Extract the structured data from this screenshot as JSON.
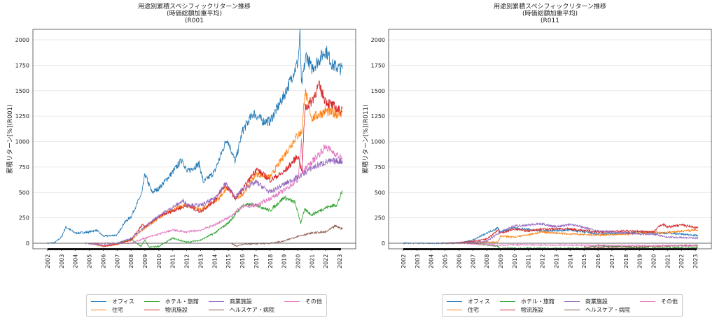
{
  "chart_data": [
    {
      "type": "line",
      "title": [
        "用途別累積スペシフィックリターン推移",
        "(時価総額加重平均)",
        "(R001"
      ],
      "xlabel": "",
      "ylabel": "累積リターン[%](R001)",
      "xlim": [
        2001.7,
        2023.9
      ],
      "ylim": [
        -50,
        2100
      ],
      "xticks": [
        "2002",
        "2003",
        "2004",
        "2005",
        "2006",
        "2007",
        "2008",
        "2009",
        "2010",
        "2011",
        "2012",
        "2013",
        "2014",
        "2015",
        "2016",
        "2017",
        "2018",
        "2019",
        "2020",
        "2021",
        "2022",
        "2023"
      ],
      "yticks": [
        0,
        250,
        500,
        750,
        1000,
        1250,
        1500,
        1750,
        2000
      ],
      "grid": "horizontal",
      "legend_position": "bottom-center",
      "series": [
        {
          "name": "オフィス",
          "color": "#1f77b4",
          "points": [
            [
              2002,
              0
            ],
            [
              2002.5,
              5
            ],
            [
              2003,
              60
            ],
            [
              2003.3,
              160
            ],
            [
              2004,
              100
            ],
            [
              2005,
              110
            ],
            [
              2005.5,
              130
            ],
            [
              2006,
              70
            ],
            [
              2007,
              80
            ],
            [
              2007.5,
              200
            ],
            [
              2008,
              260
            ],
            [
              2008.8,
              500
            ],
            [
              2009,
              680
            ],
            [
              2009.5,
              500
            ],
            [
              2010,
              540
            ],
            [
              2011,
              700
            ],
            [
              2011.7,
              830
            ],
            [
              2012,
              700
            ],
            [
              2012.9,
              780
            ],
            [
              2013.2,
              600
            ],
            [
              2014,
              700
            ],
            [
              2014.9,
              1030
            ],
            [
              2015.5,
              800
            ],
            [
              2016,
              1100
            ],
            [
              2016.8,
              1280
            ],
            [
              2017.5,
              1200
            ],
            [
              2018,
              1200
            ],
            [
              2019,
              1450
            ],
            [
              2020,
              1780
            ],
            [
              2020.15,
              2050
            ],
            [
              2020.25,
              1550
            ],
            [
              2020.6,
              1850
            ],
            [
              2021,
              1720
            ],
            [
              2021.5,
              1800
            ],
            [
              2022,
              1900
            ],
            [
              2022.5,
              1750
            ],
            [
              2023,
              1720
            ],
            [
              2023.2,
              1710
            ]
          ]
        },
        {
          "name": "住宅",
          "color": "#ff7f0e",
          "points": [
            [
              2005,
              0
            ],
            [
              2006,
              -30
            ],
            [
              2007,
              -10
            ],
            [
              2008,
              30
            ],
            [
              2009,
              150
            ],
            [
              2010,
              250
            ],
            [
              2011,
              330
            ],
            [
              2012,
              380
            ],
            [
              2013,
              330
            ],
            [
              2014,
              400
            ],
            [
              2015,
              550
            ],
            [
              2015.5,
              430
            ],
            [
              2016,
              480
            ],
            [
              2017,
              680
            ],
            [
              2018,
              650
            ],
            [
              2019,
              860
            ],
            [
              2019.9,
              1050
            ],
            [
              2020.3,
              1100
            ],
            [
              2020.5,
              1500
            ],
            [
              2021,
              1230
            ],
            [
              2022,
              1300
            ],
            [
              2022.5,
              1280
            ],
            [
              2023,
              1270
            ],
            [
              2023.2,
              1290
            ]
          ]
        },
        {
          "name": "ホテル・旅館",
          "color": "#2ca02c",
          "points": [
            [
              2007,
              0
            ],
            [
              2008,
              40
            ],
            [
              2008.7,
              -30
            ],
            [
              2009,
              30
            ],
            [
              2009.3,
              -40
            ],
            [
              2010,
              -30
            ],
            [
              2011,
              50
            ],
            [
              2012,
              10
            ],
            [
              2013,
              30
            ],
            [
              2014,
              100
            ],
            [
              2015,
              200
            ],
            [
              2016,
              370
            ],
            [
              2017,
              380
            ],
            [
              2018,
              320
            ],
            [
              2019,
              450
            ],
            [
              2019.8,
              400
            ],
            [
              2020.2,
              200
            ],
            [
              2020.5,
              330
            ],
            [
              2021,
              280
            ],
            [
              2022,
              350
            ],
            [
              2022.8,
              380
            ],
            [
              2023.2,
              510
            ]
          ]
        },
        {
          "name": "物流施設",
          "color": "#d62728",
          "points": [
            [
              2005.5,
              0
            ],
            [
              2006,
              -30
            ],
            [
              2007,
              -10
            ],
            [
              2008,
              30
            ],
            [
              2008.8,
              180
            ],
            [
              2009,
              160
            ],
            [
              2010,
              260
            ],
            [
              2011,
              320
            ],
            [
              2012,
              370
            ],
            [
              2013,
              310
            ],
            [
              2014,
              420
            ],
            [
              2014.8,
              570
            ],
            [
              2015.5,
              440
            ],
            [
              2016,
              520
            ],
            [
              2017,
              730
            ],
            [
              2018,
              620
            ],
            [
              2019,
              700
            ],
            [
              2020,
              860
            ],
            [
              2020.3,
              700
            ],
            [
              2020.5,
              1330
            ],
            [
              2021,
              1400
            ],
            [
              2021.5,
              1550
            ],
            [
              2022,
              1400
            ],
            [
              2023,
              1300
            ],
            [
              2023.2,
              1320
            ]
          ]
        },
        {
          "name": "商業施設",
          "color": "#9467bd",
          "points": [
            [
              2004.7,
              0
            ],
            [
              2006,
              -20
            ],
            [
              2007,
              0
            ],
            [
              2008,
              50
            ],
            [
              2009,
              160
            ],
            [
              2010,
              270
            ],
            [
              2011.8,
              420
            ],
            [
              2012,
              380
            ],
            [
              2013,
              370
            ],
            [
              2014,
              440
            ],
            [
              2014.8,
              590
            ],
            [
              2015.5,
              450
            ],
            [
              2016,
              530
            ],
            [
              2017,
              600
            ],
            [
              2018,
              500
            ],
            [
              2019,
              580
            ],
            [
              2020,
              650
            ],
            [
              2021,
              740
            ],
            [
              2022,
              800
            ],
            [
              2023.2,
              810
            ]
          ]
        },
        {
          "name": "ヘルスケア・病院",
          "color": "#8c564b",
          "points": [
            [
              2015.2,
              0
            ],
            [
              2015.6,
              -30
            ],
            [
              2016,
              -10
            ],
            [
              2018,
              0
            ],
            [
              2019,
              20
            ],
            [
              2020,
              70
            ],
            [
              2021,
              100
            ],
            [
              2022,
              110
            ],
            [
              2022.7,
              170
            ],
            [
              2023.2,
              140
            ]
          ]
        },
        {
          "name": "その他",
          "color": "#e377c2",
          "points": [
            [
              2005,
              0
            ],
            [
              2008,
              0
            ],
            [
              2009,
              50
            ],
            [
              2010,
              90
            ],
            [
              2011,
              130
            ],
            [
              2012,
              110
            ],
            [
              2013,
              130
            ],
            [
              2014,
              180
            ],
            [
              2015,
              250
            ],
            [
              2016,
              360
            ],
            [
              2017,
              370
            ],
            [
              2018,
              440
            ],
            [
              2019,
              520
            ],
            [
              2020,
              620
            ],
            [
              2020.25,
              990
            ],
            [
              2020.35,
              700
            ],
            [
              2021,
              800
            ],
            [
              2022,
              950
            ],
            [
              2023,
              850
            ],
            [
              2023.2,
              830
            ]
          ]
        }
      ]
    },
    {
      "type": "line",
      "title": [
        "用途別累積スペシフィックリターン推移",
        "(時価総額加重平均)",
        "(R011"
      ],
      "xlabel": "",
      "ylabel": "累積リターン[%](R011)",
      "xlim": [
        2001.7,
        2023.9
      ],
      "ylim": [
        -50,
        2100
      ],
      "xticks": [
        "2002",
        "2003",
        "2004",
        "2005",
        "2006",
        "2007",
        "2008",
        "2009",
        "2010",
        "2011",
        "2012",
        "2013",
        "2014",
        "2015",
        "2016",
        "2017",
        "2018",
        "2019",
        "2020",
        "2021",
        "2022",
        "2023"
      ],
      "yticks": [
        0,
        250,
        500,
        750,
        1000,
        1250,
        1500,
        1750,
        2000
      ],
      "grid": "horizontal",
      "legend_position": "bottom-center",
      "series": [
        {
          "name": "オフィス",
          "color": "#1f77b4",
          "points": [
            [
              2002,
              0
            ],
            [
              2006,
              0
            ],
            [
              2007,
              30
            ],
            [
              2008,
              100
            ],
            [
              2008.8,
              150
            ],
            [
              2009,
              110
            ],
            [
              2010,
              150
            ],
            [
              2012,
              120
            ],
            [
              2014,
              130
            ],
            [
              2016,
              90
            ],
            [
              2018,
              100
            ],
            [
              2019,
              110
            ],
            [
              2020,
              100
            ],
            [
              2021,
              100
            ],
            [
              2022,
              90
            ],
            [
              2023.2,
              75
            ]
          ]
        },
        {
          "name": "住宅",
          "color": "#ff7f0e",
          "points": [
            [
              2005,
              0
            ],
            [
              2008,
              10
            ],
            [
              2008.8,
              10
            ],
            [
              2009,
              70
            ],
            [
              2010,
              60
            ],
            [
              2012,
              110
            ],
            [
              2014,
              90
            ],
            [
              2016,
              80
            ],
            [
              2018,
              90
            ],
            [
              2020,
              110
            ],
            [
              2020.5,
              100
            ],
            [
              2022,
              120
            ],
            [
              2023.2,
              130
            ]
          ]
        },
        {
          "name": "ホテル・旅館",
          "color": "#2ca02c",
          "points": [
            [
              2007,
              0
            ],
            [
              2008.8,
              -30
            ],
            [
              2009,
              -50
            ],
            [
              2015,
              -50
            ],
            [
              2016,
              -20
            ],
            [
              2017,
              -30
            ],
            [
              2020,
              -50
            ],
            [
              2023.2,
              -40
            ]
          ]
        },
        {
          "name": "物流施設",
          "color": "#d62728",
          "points": [
            [
              2005.5,
              0
            ],
            [
              2007,
              20
            ],
            [
              2008,
              40
            ],
            [
              2008.8,
              130
            ],
            [
              2009,
              100
            ],
            [
              2010,
              140
            ],
            [
              2011,
              120
            ],
            [
              2012,
              140
            ],
            [
              2014,
              140
            ],
            [
              2016,
              110
            ],
            [
              2018,
              120
            ],
            [
              2020,
              110
            ],
            [
              2020.6,
              190
            ],
            [
              2021,
              160
            ],
            [
              2022,
              180
            ],
            [
              2023.2,
              150
            ]
          ]
        },
        {
          "name": "商業施設",
          "color": "#9467bd",
          "points": [
            [
              2004.7,
              0
            ],
            [
              2007,
              10
            ],
            [
              2008,
              20
            ],
            [
              2009,
              110
            ],
            [
              2010,
              170
            ],
            [
              2012,
              190
            ],
            [
              2013,
              160
            ],
            [
              2014,
              190
            ],
            [
              2016,
              120
            ],
            [
              2018,
              100
            ],
            [
              2019,
              90
            ],
            [
              2020,
              90
            ],
            [
              2021,
              60
            ],
            [
              2023.2,
              50
            ]
          ]
        },
        {
          "name": "ヘルスケア・病院",
          "color": "#8c564b",
          "points": [
            [
              2015,
              -40
            ],
            [
              2019,
              -35
            ],
            [
              2023,
              -20
            ],
            [
              2023.2,
              -25
            ]
          ]
        },
        {
          "name": "その他",
          "color": "#e377c2",
          "points": [
            [
              2006,
              0
            ],
            [
              2008.8,
              -20
            ],
            [
              2010,
              -15
            ],
            [
              2015,
              -20
            ],
            [
              2023.2,
              -25
            ]
          ]
        }
      ]
    }
  ]
}
